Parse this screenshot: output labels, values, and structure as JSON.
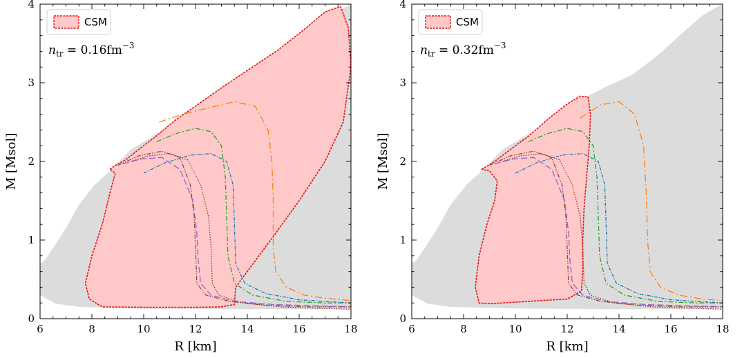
{
  "colors": {
    "csm_fill": "#ffc9c9",
    "csm_edge": "#e01010",
    "gray_band": "#dcdcdc",
    "orange": "#ff7f0e",
    "green": "#2ca02c",
    "blue": "#1f77b4",
    "purple": "#8c64d4",
    "brown": "#8c4a3a",
    "darkred": "#a0281e"
  },
  "chart_data": [
    {
      "type": "line",
      "title": "",
      "xlabel": "R [km]",
      "ylabel": "M [Msol]",
      "xlim": [
        6,
        18
      ],
      "ylim": [
        0,
        4
      ],
      "xticks": [
        "6",
        "8",
        "10",
        "12",
        "14",
        "16",
        "18"
      ],
      "yticks": [
        "0",
        "1",
        "2",
        "3",
        "4"
      ],
      "legend": {
        "label": "CSM",
        "placement": "top-left"
      },
      "annotation": {
        "var": "n",
        "sub": "tr",
        "value": " = 0.16fm",
        "exp": "−3"
      },
      "gray_band": [
        [
          6.0,
          0.3
        ],
        [
          6.6,
          0.19
        ],
        [
          7.5,
          0.15
        ],
        [
          10,
          0.13
        ],
        [
          14,
          0.12
        ],
        [
          18,
          0.12
        ],
        [
          18,
          4.0
        ],
        [
          17.7,
          3.95
        ],
        [
          17.2,
          3.85
        ],
        [
          16.5,
          3.65
        ],
        [
          15.5,
          3.35
        ],
        [
          14.5,
          3.1
        ],
        [
          13.5,
          2.95
        ],
        [
          12.3,
          2.75
        ],
        [
          11.5,
          2.55
        ],
        [
          10.5,
          2.35
        ],
        [
          9.5,
          2.15
        ],
        [
          9.0,
          1.98
        ],
        [
          8.7,
          1.88
        ],
        [
          8.1,
          1.7
        ],
        [
          7.5,
          1.45
        ],
        [
          7.0,
          1.15
        ],
        [
          6.6,
          0.95
        ],
        [
          6.2,
          0.75
        ],
        [
          6.0,
          0.7
        ]
      ],
      "csm_region": [
        [
          8.7,
          1.9
        ],
        [
          8.9,
          1.95
        ],
        [
          9.3,
          2.02
        ],
        [
          9.8,
          2.15
        ],
        [
          10.4,
          2.3
        ],
        [
          11.2,
          2.52
        ],
        [
          12.2,
          2.75
        ],
        [
          13.2,
          2.98
        ],
        [
          14.2,
          3.2
        ],
        [
          15.2,
          3.42
        ],
        [
          16.2,
          3.68
        ],
        [
          17.0,
          3.9
        ],
        [
          17.6,
          3.97
        ],
        [
          17.9,
          3.7
        ],
        [
          18.0,
          3.2
        ],
        [
          17.7,
          2.5
        ],
        [
          17.0,
          2.0
        ],
        [
          16.0,
          1.5
        ],
        [
          14.9,
          1.0
        ],
        [
          14.0,
          0.6
        ],
        [
          13.55,
          0.4
        ],
        [
          13.5,
          0.18
        ],
        [
          13.0,
          0.15
        ],
        [
          12.0,
          0.145
        ],
        [
          10.0,
          0.145
        ],
        [
          8.4,
          0.15
        ],
        [
          7.9,
          0.25
        ],
        [
          7.75,
          0.45
        ],
        [
          8.0,
          0.8
        ],
        [
          8.4,
          1.2
        ],
        [
          8.7,
          1.6
        ],
        [
          8.9,
          1.85
        ],
        [
          8.7,
          1.9
        ]
      ],
      "series": [
        {
          "name": "orange",
          "style": "dashdot-long",
          "R": [
            10.6,
            11.5,
            12.5,
            13.5,
            14.3,
            14.8,
            14.95,
            15.0,
            15.0,
            15.1,
            15.5,
            16.2,
            17.0,
            18.0
          ],
          "M": [
            2.5,
            2.6,
            2.68,
            2.76,
            2.7,
            2.4,
            2.0,
            1.5,
            0.9,
            0.6,
            0.4,
            0.3,
            0.26,
            0.23
          ]
        },
        {
          "name": "green",
          "style": "dashdot",
          "R": [
            10.5,
            11.2,
            12.0,
            12.6,
            13.0,
            13.15,
            13.2,
            13.25,
            13.5,
            14.2,
            15.5,
            17.0,
            18.0
          ],
          "M": [
            2.25,
            2.35,
            2.42,
            2.38,
            2.2,
            1.8,
            1.3,
            0.8,
            0.45,
            0.3,
            0.22,
            0.2,
            0.2
          ]
        },
        {
          "name": "blue",
          "style": "dashdot-dense",
          "R": [
            10.0,
            10.8,
            11.8,
            12.6,
            13.2,
            13.45,
            13.5,
            13.55,
            13.9,
            14.7,
            16.0,
            17.5,
            18.0
          ],
          "M": [
            1.85,
            1.98,
            2.08,
            2.1,
            2.0,
            1.7,
            1.2,
            0.7,
            0.45,
            0.32,
            0.24,
            0.21,
            0.2
          ]
        },
        {
          "name": "purple",
          "style": "dashed-long",
          "R": [
            9.2,
            9.9,
            10.7,
            11.4,
            11.9,
            12.05,
            12.1,
            12.2,
            12.6,
            13.5,
            15.0,
            17.0,
            18.0
          ],
          "M": [
            1.97,
            2.03,
            2.05,
            1.9,
            1.5,
            1.1,
            0.75,
            0.45,
            0.3,
            0.22,
            0.18,
            0.16,
            0.15
          ]
        },
        {
          "name": "brown",
          "style": "dashdotdot",
          "R": [
            9.0,
            9.8,
            10.7,
            11.4,
            11.8,
            11.95,
            12.0,
            12.05,
            12.4,
            13.3,
            14.8,
            16.5,
            18.0
          ],
          "M": [
            1.95,
            2.07,
            2.13,
            2.05,
            1.7,
            1.3,
            0.9,
            0.45,
            0.3,
            0.22,
            0.17,
            0.15,
            0.15
          ]
        },
        {
          "name": "darkred",
          "style": "dotted",
          "R": [
            9.5,
            10.2,
            11.0,
            11.7,
            12.2,
            12.5,
            12.6,
            12.65,
            12.9,
            13.8,
            15.3,
            17.0,
            18.0
          ],
          "M": [
            2.0,
            2.07,
            2.1,
            2.02,
            1.7,
            1.3,
            0.9,
            0.45,
            0.3,
            0.2,
            0.15,
            0.13,
            0.12
          ]
        }
      ]
    },
    {
      "type": "line",
      "title": "",
      "xlabel": "R [km]",
      "ylabel": "M [Msol]",
      "xlim": [
        6,
        18
      ],
      "ylim": [
        0,
        4
      ],
      "xticks": [
        "6",
        "8",
        "10",
        "12",
        "14",
        "16",
        "18"
      ],
      "yticks": [
        "0",
        "1",
        "2",
        "3",
        "4"
      ],
      "legend": {
        "label": "CSM",
        "placement": "top-left"
      },
      "annotation": {
        "var": "n",
        "sub": "tr",
        "value": " = 0.32fm",
        "exp": "−3"
      },
      "gray_band": [
        [
          6.0,
          0.3
        ],
        [
          6.6,
          0.19
        ],
        [
          7.5,
          0.15
        ],
        [
          10,
          0.13
        ],
        [
          14,
          0.12
        ],
        [
          18,
          0.12
        ],
        [
          18,
          4.0
        ],
        [
          17.7,
          3.95
        ],
        [
          17.2,
          3.85
        ],
        [
          16.5,
          3.65
        ],
        [
          15.5,
          3.35
        ],
        [
          14.5,
          3.1
        ],
        [
          13.5,
          2.95
        ],
        [
          12.3,
          2.75
        ],
        [
          11.5,
          2.55
        ],
        [
          10.5,
          2.35
        ],
        [
          9.5,
          2.15
        ],
        [
          9.0,
          1.98
        ],
        [
          8.7,
          1.88
        ],
        [
          8.1,
          1.7
        ],
        [
          7.5,
          1.45
        ],
        [
          7.0,
          1.15
        ],
        [
          6.6,
          0.95
        ],
        [
          6.2,
          0.75
        ],
        [
          6.0,
          0.7
        ]
      ],
      "csm_region": [
        [
          8.7,
          1.9
        ],
        [
          9.2,
          2.0
        ],
        [
          9.8,
          2.15
        ],
        [
          10.5,
          2.32
        ],
        [
          11.3,
          2.55
        ],
        [
          12.0,
          2.73
        ],
        [
          12.5,
          2.83
        ],
        [
          12.8,
          2.82
        ],
        [
          12.9,
          2.6
        ],
        [
          12.85,
          2.2
        ],
        [
          12.75,
          1.8
        ],
        [
          12.65,
          1.4
        ],
        [
          12.6,
          1.0
        ],
        [
          12.6,
          0.6
        ],
        [
          12.55,
          0.35
        ],
        [
          12.0,
          0.25
        ],
        [
          11.0,
          0.23
        ],
        [
          10.0,
          0.21
        ],
        [
          9.0,
          0.19
        ],
        [
          8.6,
          0.2
        ],
        [
          8.45,
          0.4
        ],
        [
          8.6,
          0.8
        ],
        [
          8.9,
          1.2
        ],
        [
          9.2,
          1.5
        ],
        [
          9.3,
          1.75
        ],
        [
          9.0,
          1.88
        ],
        [
          8.7,
          1.9
        ]
      ],
      "series": [
        {
          "name": "orange",
          "style": "dashdot-long",
          "R": [
            12.5,
            13.3,
            14.0,
            14.6,
            14.95,
            15.05,
            15.1,
            15.2,
            15.6,
            16.3,
            17.2,
            18.0
          ],
          "M": [
            2.55,
            2.72,
            2.76,
            2.6,
            2.2,
            1.6,
            1.0,
            0.6,
            0.4,
            0.3,
            0.25,
            0.23
          ]
        },
        {
          "name": "green",
          "style": "dashdot",
          "R": [
            10.5,
            11.2,
            12.0,
            12.6,
            13.0,
            13.15,
            13.2,
            13.25,
            13.5,
            14.2,
            15.5,
            17.0,
            18.0
          ],
          "M": [
            2.25,
            2.35,
            2.42,
            2.38,
            2.2,
            1.8,
            1.3,
            0.8,
            0.45,
            0.3,
            0.22,
            0.2,
            0.2
          ]
        },
        {
          "name": "blue",
          "style": "dashdot-dense",
          "R": [
            10.0,
            10.8,
            11.8,
            12.6,
            13.2,
            13.45,
            13.5,
            13.55,
            13.9,
            14.7,
            16.0,
            17.5,
            18.0
          ],
          "M": [
            1.85,
            1.98,
            2.08,
            2.1,
            2.0,
            1.7,
            1.2,
            0.7,
            0.45,
            0.32,
            0.24,
            0.21,
            0.2
          ]
        },
        {
          "name": "purple",
          "style": "dashed-long",
          "R": [
            9.2,
            9.9,
            10.7,
            11.4,
            11.9,
            12.05,
            12.1,
            12.2,
            12.6,
            13.5,
            15.0,
            17.0,
            18.0
          ],
          "M": [
            1.97,
            2.03,
            2.05,
            1.9,
            1.5,
            1.1,
            0.75,
            0.45,
            0.3,
            0.22,
            0.18,
            0.16,
            0.15
          ]
        },
        {
          "name": "brown",
          "style": "dashdotdot",
          "R": [
            9.0,
            9.8,
            10.7,
            11.4,
            11.8,
            11.95,
            12.0,
            12.05,
            12.4,
            13.3,
            14.8,
            16.5,
            18.0
          ],
          "M": [
            1.95,
            2.07,
            2.13,
            2.05,
            1.7,
            1.3,
            0.9,
            0.45,
            0.3,
            0.22,
            0.17,
            0.15,
            0.15
          ]
        },
        {
          "name": "darkred",
          "style": "dotted",
          "R": [
            9.5,
            10.2,
            11.0,
            11.7,
            12.2,
            12.5,
            12.6,
            12.65,
            12.9,
            13.8,
            15.3,
            17.0,
            18.0
          ],
          "M": [
            2.0,
            2.07,
            2.1,
            2.02,
            1.7,
            1.3,
            0.9,
            0.45,
            0.3,
            0.2,
            0.15,
            0.13,
            0.12
          ]
        }
      ]
    }
  ]
}
